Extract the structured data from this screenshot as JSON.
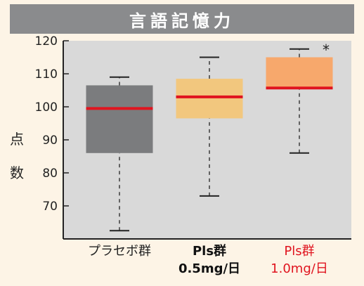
{
  "chart_data": {
    "type": "box",
    "title": "言語記憶力",
    "ylabel": "点数",
    "ylim": [
      60,
      120
    ],
    "yticks": [
      70,
      80,
      90,
      100,
      110,
      120
    ],
    "categories": [
      {
        "lines": [
          "プラセボ群"
        ],
        "label_color": "#222222",
        "bold": false
      },
      {
        "lines": [
          "Pls群",
          "0.5mg/日"
        ],
        "label_color": "#111111",
        "bold": true
      },
      {
        "lines": [
          "Pls群",
          "1.0mg/日"
        ],
        "label_color": "#e0141f",
        "bold": false
      }
    ],
    "boxes": [
      {
        "min": 62.5,
        "q1": 86,
        "median": 99.5,
        "q3": 106.5,
        "max": 109,
        "color": "#7b7c7e"
      },
      {
        "min": 73,
        "q1": 96.5,
        "median": 103,
        "q3": 108.5,
        "max": 115,
        "color": "#f2c77e"
      },
      {
        "min": 86,
        "q1": 105.5,
        "median": 105.7,
        "q3": 115,
        "max": 117.5,
        "color": "#f7a86c"
      }
    ],
    "median_color": "#e0141f",
    "annotation": {
      "text": "*",
      "box_index": 2
    },
    "plot_background": "#d9d9d9",
    "grid": false
  }
}
